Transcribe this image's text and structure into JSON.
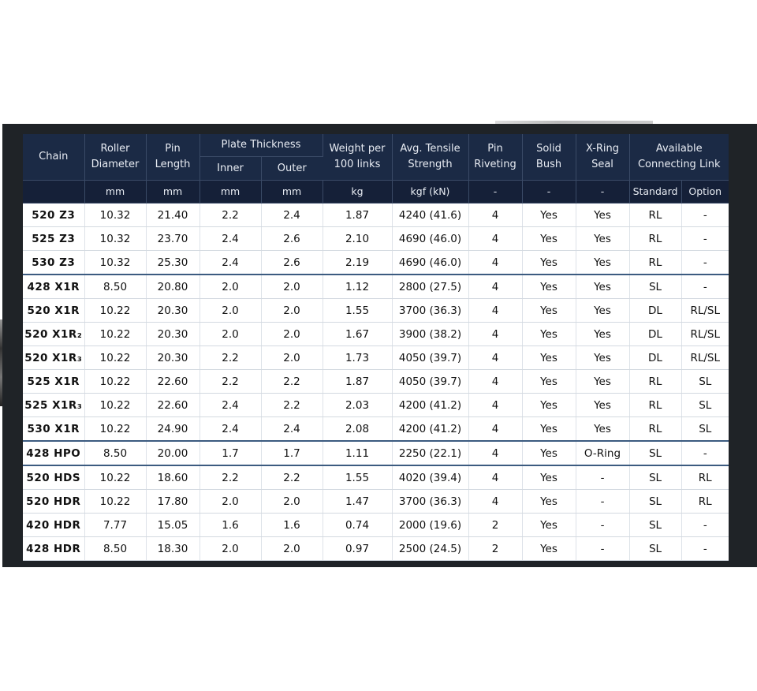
{
  "header": {
    "chain": "Chain",
    "roller_diameter": [
      "Roller",
      "Diameter"
    ],
    "pin_length": [
      "Pin",
      "Length"
    ],
    "plate_thickness": "Plate Thickness",
    "inner": "Inner",
    "outer": "Outer",
    "weight": [
      "Weight per",
      "100 links"
    ],
    "tensile": [
      "Avg. Tensile",
      "Strength"
    ],
    "pin_riveting": [
      "Pin",
      "Riveting"
    ],
    "solid_bush": [
      "Solid",
      "Bush"
    ],
    "xring_seal": [
      "X-Ring",
      "Seal"
    ],
    "connecting_link": [
      "Available",
      "Connecting Link"
    ]
  },
  "units": [
    "mm",
    "mm",
    "mm",
    "mm",
    "kg",
    "kgf (kN)",
    "-",
    "-",
    "-",
    "Standard",
    "Option"
  ],
  "rows": [
    {
      "chain": "520 Z3",
      "roller": "10.32",
      "pin": "21.40",
      "inner": "2.2",
      "outer": "2.4",
      "weight": "1.87",
      "tensile": "4240 (41.6)",
      "riveting": "4",
      "bush": "Yes",
      "seal": "Yes",
      "standard": "RL",
      "option": "-",
      "group_start": false
    },
    {
      "chain": "525 Z3",
      "roller": "10.32",
      "pin": "23.70",
      "inner": "2.4",
      "outer": "2.6",
      "weight": "2.10",
      "tensile": "4690 (46.0)",
      "riveting": "4",
      "bush": "Yes",
      "seal": "Yes",
      "standard": "RL",
      "option": "-",
      "group_start": false
    },
    {
      "chain": "530 Z3",
      "roller": "10.32",
      "pin": "25.30",
      "inner": "2.4",
      "outer": "2.6",
      "weight": "2.19",
      "tensile": "4690 (46.0)",
      "riveting": "4",
      "bush": "Yes",
      "seal": "Yes",
      "standard": "RL",
      "option": "-",
      "group_start": false
    },
    {
      "chain": "428 X1R",
      "roller": "8.50",
      "pin": "20.80",
      "inner": "2.0",
      "outer": "2.0",
      "weight": "1.12",
      "tensile": "2800 (27.5)",
      "riveting": "4",
      "bush": "Yes",
      "seal": "Yes",
      "standard": "SL",
      "option": "-",
      "group_start": true
    },
    {
      "chain": "520 X1R",
      "roller": "10.22",
      "pin": "20.30",
      "inner": "2.0",
      "outer": "2.0",
      "weight": "1.55",
      "tensile": "3700 (36.3)",
      "riveting": "4",
      "bush": "Yes",
      "seal": "Yes",
      "standard": "DL",
      "option": "RL/SL",
      "group_start": false
    },
    {
      "chain": "520 X1R₂",
      "roller": "10.22",
      "pin": "20.30",
      "inner": "2.0",
      "outer": "2.0",
      "weight": "1.67",
      "tensile": "3900 (38.2)",
      "riveting": "4",
      "bush": "Yes",
      "seal": "Yes",
      "standard": "DL",
      "option": "RL/SL",
      "group_start": false
    },
    {
      "chain": "520 X1R₃",
      "roller": "10.22",
      "pin": "20.30",
      "inner": "2.2",
      "outer": "2.0",
      "weight": "1.73",
      "tensile": "4050 (39.7)",
      "riveting": "4",
      "bush": "Yes",
      "seal": "Yes",
      "standard": "DL",
      "option": "RL/SL",
      "group_start": false
    },
    {
      "chain": "525 X1R",
      "roller": "10.22",
      "pin": "22.60",
      "inner": "2.2",
      "outer": "2.2",
      "weight": "1.87",
      "tensile": "4050 (39.7)",
      "riveting": "4",
      "bush": "Yes",
      "seal": "Yes",
      "standard": "RL",
      "option": "SL",
      "group_start": false
    },
    {
      "chain": "525 X1R₃",
      "roller": "10.22",
      "pin": "22.60",
      "inner": "2.4",
      "outer": "2.2",
      "weight": "2.03",
      "tensile": "4200 (41.2)",
      "riveting": "4",
      "bush": "Yes",
      "seal": "Yes",
      "standard": "RL",
      "option": "SL",
      "group_start": false
    },
    {
      "chain": "530 X1R",
      "roller": "10.22",
      "pin": "24.90",
      "inner": "2.4",
      "outer": "2.4",
      "weight": "2.08",
      "tensile": "4200 (41.2)",
      "riveting": "4",
      "bush": "Yes",
      "seal": "Yes",
      "standard": "RL",
      "option": "SL",
      "group_start": false
    },
    {
      "chain": "428 HPO",
      "roller": "8.50",
      "pin": "20.00",
      "inner": "1.7",
      "outer": "1.7",
      "weight": "1.11",
      "tensile": "2250 (22.1)",
      "riveting": "4",
      "bush": "Yes",
      "seal": "O-Ring",
      "standard": "SL",
      "option": "-",
      "group_start": true
    },
    {
      "chain": "520 HDS",
      "roller": "10.22",
      "pin": "18.60",
      "inner": "2.2",
      "outer": "2.2",
      "weight": "1.55",
      "tensile": "4020 (39.4)",
      "riveting": "4",
      "bush": "Yes",
      "seal": "-",
      "standard": "SL",
      "option": "RL",
      "group_start": true
    },
    {
      "chain": "520 HDR",
      "roller": "10.22",
      "pin": "17.80",
      "inner": "2.0",
      "outer": "2.0",
      "weight": "1.47",
      "tensile": "3700 (36.3)",
      "riveting": "4",
      "bush": "Yes",
      "seal": "-",
      "standard": "SL",
      "option": "RL",
      "group_start": false
    },
    {
      "chain": "420 HDR",
      "roller": "7.77",
      "pin": "15.05",
      "inner": "1.6",
      "outer": "1.6",
      "weight": "0.74",
      "tensile": "2000 (19.6)",
      "riveting": "2",
      "bush": "Yes",
      "seal": "-",
      "standard": "SL",
      "option": "-",
      "group_start": false
    },
    {
      "chain": "428 HDR",
      "roller": "8.50",
      "pin": "18.30",
      "inner": "2.0",
      "outer": "2.0",
      "weight": "0.97",
      "tensile": "2500 (24.5)",
      "riveting": "2",
      "bush": "Yes",
      "seal": "-",
      "standard": "SL",
      "option": "-",
      "group_start": false
    }
  ]
}
